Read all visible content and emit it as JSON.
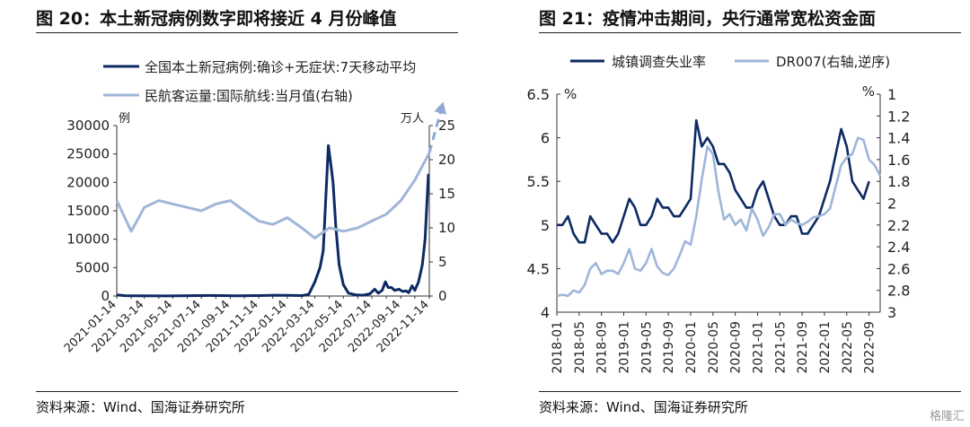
{
  "watermark": "格隆汇",
  "charts": [
    {
      "title": "图 20：本土新冠病例数字即将接近 4 月份峰值",
      "source": "资料来源：Wind、国海证券研究所",
      "chart_data": {
        "type": "line",
        "x": [
          "2021-01-14",
          "2021-02-14",
          "2021-03-14",
          "2021-04-14",
          "2021-05-14",
          "2021-06-14",
          "2021-07-14",
          "2021-08-14",
          "2021-09-14",
          "2021-10-14",
          "2021-11-14",
          "2021-12-14",
          "2022-01-14",
          "2022-02-14",
          "2022-03-14",
          "2022-04-14",
          "2022-05-14",
          "2022-06-14",
          "2022-07-14",
          "2022-08-14",
          "2022-09-14",
          "2022-10-14",
          "2022-11-14"
        ],
        "x_tick_labels": [
          "2021-01-14",
          "2021-03-14",
          "2021-05-14",
          "2021-07-14",
          "2021-09-14",
          "2021-11-14",
          "2022-01-14",
          "2022-03-14",
          "2022-05-14",
          "2022-07-14",
          "2022-09-14",
          "2022-11-14"
        ],
        "yleft_ticks": [
          "0",
          "5000",
          "10000",
          "15000",
          "20000",
          "25000",
          "30000"
        ],
        "yright_ticks": [
          "0",
          "5",
          "10",
          "15",
          "20",
          "25"
        ],
        "ylim_left": [
          0,
          30000
        ],
        "ylim_right": [
          0,
          25
        ],
        "yleft_unit": "例",
        "yright_unit": "万人",
        "legend_position": "top",
        "series": [
          {
            "name": "全国本土新冠病例:确诊+无症状:7天移动平均",
            "axis": "left",
            "color": "#0d2a63",
            "points": [
              [
                "2021-01-14",
                200
              ],
              [
                "2021-02-01",
                60
              ],
              [
                "2021-03-01",
                30
              ],
              [
                "2021-05-01",
                20
              ],
              [
                "2021-08-01",
                100
              ],
              [
                "2021-10-01",
                40
              ],
              [
                "2021-11-14",
                80
              ],
              [
                "2021-12-20",
                150
              ],
              [
                "2022-01-14",
                120
              ],
              [
                "2022-02-15",
                80
              ],
              [
                "2022-03-01",
                300
              ],
              [
                "2022-03-14",
                2500
              ],
              [
                "2022-03-25",
                5000
              ],
              [
                "2022-04-01",
                8000
              ],
              [
                "2022-04-08",
                20000
              ],
              [
                "2022-04-12",
                26500
              ],
              [
                "2022-04-16",
                24000
              ],
              [
                "2022-04-22",
                20000
              ],
              [
                "2022-04-28",
                12000
              ],
              [
                "2022-05-05",
                5500
              ],
              [
                "2022-05-14",
                2000
              ],
              [
                "2022-05-25",
                500
              ],
              [
                "2022-06-10",
                200
              ],
              [
                "2022-06-25",
                150
              ],
              [
                "2022-07-10",
                400
              ],
              [
                "2022-07-20",
                1200
              ],
              [
                "2022-07-28",
                500
              ],
              [
                "2022-08-05",
                1000
              ],
              [
                "2022-08-12",
                2500
              ],
              [
                "2022-08-18",
                1500
              ],
              [
                "2022-08-25",
                1500
              ],
              [
                "2022-09-01",
                1000
              ],
              [
                "2022-09-10",
                1200
              ],
              [
                "2022-09-18",
                800
              ],
              [
                "2022-09-25",
                900
              ],
              [
                "2022-10-01",
                600
              ],
              [
                "2022-10-08",
                1800
              ],
              [
                "2022-10-14",
                1000
              ],
              [
                "2022-10-22",
                2500
              ],
              [
                "2022-10-30",
                5500
              ],
              [
                "2022-11-05",
                10000
              ],
              [
                "2022-11-12",
                21500
              ]
            ]
          },
          {
            "name": "民航客运量:国际航线:当月值(右轴)",
            "axis": "right",
            "color": "#9fb6d9",
            "points": [
              [
                "2021-01-14",
                14
              ],
              [
                "2021-02-14",
                9.5
              ],
              [
                "2021-03-14",
                13
              ],
              [
                "2021-04-14",
                14
              ],
              [
                "2021-05-14",
                13.5
              ],
              [
                "2021-06-14",
                13
              ],
              [
                "2021-07-14",
                12.5
              ],
              [
                "2021-08-14",
                13.5
              ],
              [
                "2021-09-14",
                14
              ],
              [
                "2021-10-14",
                12.5
              ],
              [
                "2021-11-14",
                11
              ],
              [
                "2021-12-14",
                10.5
              ],
              [
                "2022-01-14",
                11.5
              ],
              [
                "2022-02-14",
                10
              ],
              [
                "2022-03-14",
                8.5
              ],
              [
                "2022-04-14",
                10
              ],
              [
                "2022-05-14",
                9.5
              ],
              [
                "2022-06-14",
                10
              ],
              [
                "2022-07-14",
                11
              ],
              [
                "2022-08-14",
                12
              ],
              [
                "2022-09-14",
                14
              ],
              [
                "2022-10-14",
                17
              ],
              [
                "2022-11-14",
                21
              ]
            ]
          }
        ],
        "projection": {
          "from": [
            "2022-11-14",
            21
          ],
          "to": [
            "2022-12-14",
            28.5
          ],
          "color": "#8fa9d2"
        }
      }
    },
    {
      "title": "图 21：疫情冲击期间，央行通常宽松资金面",
      "source": "资料来源：Wind、国海证券研究所",
      "chart_data": {
        "type": "line",
        "x_start": "2018-01",
        "x_end": "2022-11",
        "x_tick_labels": [
          "2018-01",
          "2018-05",
          "2018-09",
          "2019-01",
          "2019-05",
          "2019-09",
          "2020-01",
          "2020-05",
          "2020-09",
          "2021-01",
          "2021-05",
          "2021-09",
          "2022-01",
          "2022-05",
          "2022-09"
        ],
        "yleft_ticks": [
          "4",
          "4.5",
          "5",
          "5.5",
          "6",
          "6.5"
        ],
        "yright_ticks": [
          "1",
          "1.2",
          "1.4",
          "1.6",
          "1.8",
          "2",
          "2.2",
          "2.4",
          "2.6",
          "2.8",
          "3"
        ],
        "ylim_left": [
          4,
          6.5
        ],
        "ylim_right": [
          1,
          3
        ],
        "right_axis_inverted": true,
        "yleft_unit": "%",
        "yright_unit": "%",
        "legend_position": "top",
        "series": [
          {
            "name": "城镇调查失业率",
            "axis": "left",
            "color": "#0d2a63",
            "points": [
              [
                "2018-01",
                5.0
              ],
              [
                "2018-02",
                5.0
              ],
              [
                "2018-03",
                5.1
              ],
              [
                "2018-04",
                4.9
              ],
              [
                "2018-05",
                4.8
              ],
              [
                "2018-06",
                4.8
              ],
              [
                "2018-07",
                5.1
              ],
              [
                "2018-08",
                5.0
              ],
              [
                "2018-09",
                4.9
              ],
              [
                "2018-10",
                4.9
              ],
              [
                "2018-11",
                4.8
              ],
              [
                "2018-12",
                4.9
              ],
              [
                "2019-01",
                5.1
              ],
              [
                "2019-02",
                5.3
              ],
              [
                "2019-03",
                5.2
              ],
              [
                "2019-04",
                5.0
              ],
              [
                "2019-05",
                5.0
              ],
              [
                "2019-06",
                5.1
              ],
              [
                "2019-07",
                5.3
              ],
              [
                "2019-08",
                5.2
              ],
              [
                "2019-09",
                5.2
              ],
              [
                "2019-10",
                5.1
              ],
              [
                "2019-11",
                5.1
              ],
              [
                "2019-12",
                5.2
              ],
              [
                "2020-01",
                5.3
              ],
              [
                "2020-02",
                6.2
              ],
              [
                "2020-03",
                5.9
              ],
              [
                "2020-04",
                6.0
              ],
              [
                "2020-05",
                5.9
              ],
              [
                "2020-06",
                5.7
              ],
              [
                "2020-07",
                5.7
              ],
              [
                "2020-08",
                5.6
              ],
              [
                "2020-09",
                5.4
              ],
              [
                "2020-10",
                5.3
              ],
              [
                "2020-11",
                5.2
              ],
              [
                "2020-12",
                5.2
              ],
              [
                "2021-01",
                5.4
              ],
              [
                "2021-02",
                5.5
              ],
              [
                "2021-03",
                5.3
              ],
              [
                "2021-04",
                5.1
              ],
              [
                "2021-05",
                5.0
              ],
              [
                "2021-06",
                5.0
              ],
              [
                "2021-07",
                5.1
              ],
              [
                "2021-08",
                5.1
              ],
              [
                "2021-09",
                4.9
              ],
              [
                "2021-10",
                4.9
              ],
              [
                "2021-11",
                5.0
              ],
              [
                "2021-12",
                5.1
              ],
              [
                "2022-01",
                5.3
              ],
              [
                "2022-02",
                5.5
              ],
              [
                "2022-03",
                5.8
              ],
              [
                "2022-04",
                6.1
              ],
              [
                "2022-05",
                5.9
              ],
              [
                "2022-06",
                5.5
              ],
              [
                "2022-07",
                5.4
              ],
              [
                "2022-08",
                5.3
              ],
              [
                "2022-09",
                5.5
              ]
            ]
          },
          {
            "name": "DR007(右轴,逆序)",
            "axis": "right",
            "color": "#9fb6d9",
            "points": [
              [
                "2018-01",
                2.85
              ],
              [
                "2018-02",
                2.84
              ],
              [
                "2018-03",
                2.85
              ],
              [
                "2018-04",
                2.8
              ],
              [
                "2018-05",
                2.82
              ],
              [
                "2018-06",
                2.75
              ],
              [
                "2018-07",
                2.6
              ],
              [
                "2018-08",
                2.55
              ],
              [
                "2018-09",
                2.65
              ],
              [
                "2018-10",
                2.62
              ],
              [
                "2018-11",
                2.62
              ],
              [
                "2018-12",
                2.65
              ],
              [
                "2019-01",
                2.55
              ],
              [
                "2019-02",
                2.42
              ],
              [
                "2019-03",
                2.6
              ],
              [
                "2019-04",
                2.62
              ],
              [
                "2019-05",
                2.55
              ],
              [
                "2019-06",
                2.42
              ],
              [
                "2019-07",
                2.58
              ],
              [
                "2019-08",
                2.64
              ],
              [
                "2019-09",
                2.66
              ],
              [
                "2019-10",
                2.6
              ],
              [
                "2019-11",
                2.48
              ],
              [
                "2019-12",
                2.35
              ],
              [
                "2020-01",
                2.38
              ],
              [
                "2020-02",
                2.12
              ],
              [
                "2020-03",
                1.78
              ],
              [
                "2020-04",
                1.48
              ],
              [
                "2020-05",
                1.55
              ],
              [
                "2020-06",
                1.9
              ],
              [
                "2020-07",
                2.15
              ],
              [
                "2020-08",
                2.1
              ],
              [
                "2020-09",
                2.2
              ],
              [
                "2020-10",
                2.15
              ],
              [
                "2020-11",
                2.25
              ],
              [
                "2020-12",
                2.05
              ],
              [
                "2021-01",
                2.15
              ],
              [
                "2021-02",
                2.3
              ],
              [
                "2021-03",
                2.22
              ],
              [
                "2021-04",
                2.1
              ],
              [
                "2021-05",
                2.1
              ],
              [
                "2021-06",
                2.2
              ],
              [
                "2021-07",
                2.15
              ],
              [
                "2021-08",
                2.18
              ],
              [
                "2021-09",
                2.2
              ],
              [
                "2021-10",
                2.17
              ],
              [
                "2021-11",
                2.13
              ],
              [
                "2021-12",
                2.12
              ],
              [
                "2022-01",
                2.1
              ],
              [
                "2022-02",
                2.05
              ],
              [
                "2022-03",
                1.85
              ],
              [
                "2022-04",
                1.65
              ],
              [
                "2022-05",
                1.58
              ],
              [
                "2022-06",
                1.55
              ],
              [
                "2022-07",
                1.4
              ],
              [
                "2022-08",
                1.42
              ],
              [
                "2022-09",
                1.6
              ],
              [
                "2022-10",
                1.65
              ],
              [
                "2022-11",
                1.75
              ]
            ]
          }
        ]
      }
    }
  ]
}
